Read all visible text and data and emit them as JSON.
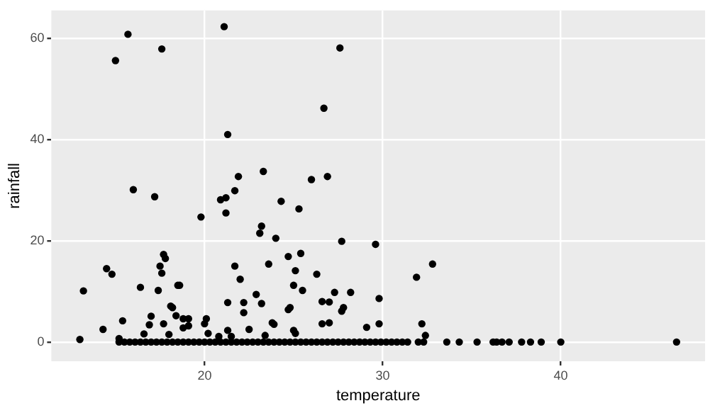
{
  "chart_data": {
    "type": "scatter",
    "xlabel": "temperature",
    "ylabel": "rainfall",
    "x": [
      15.7,
      15.0,
      17.6,
      21.1,
      27.6,
      26.7,
      21.3,
      21.9,
      23.3,
      26.0,
      26.9,
      16.0,
      17.2,
      19.8,
      20.9,
      21.2,
      21.2,
      21.7,
      24.3,
      25.3,
      23.2,
      23.1,
      24.0,
      27.7,
      29.6,
      13.2,
      14.5,
      14.8,
      17.7,
      17.8,
      17.5,
      17.6,
      16.4,
      17.4,
      18.5,
      18.6,
      18.1,
      18.2,
      18.4,
      18.8,
      19.1,
      18.8,
      19.1,
      17.0,
      16.9,
      15.4,
      14.3,
      13.0,
      15.2,
      16.6,
      17.7,
      18.0,
      20.1,
      20.0,
      20.2,
      21.7,
      22.0,
      21.3,
      22.2,
      22.2,
      22.9,
      23.2,
      23.6,
      24.7,
      25.1,
      25.4,
      25.0,
      25.5,
      26.3,
      26.6,
      27.0,
      27.3,
      28.2,
      27.8,
      27.7,
      24.7,
      24.8,
      23.8,
      23.9,
      26.6,
      27.0,
      29.1,
      29.8,
      29.8,
      22.5,
      21.3,
      25.0,
      25.1,
      23.4,
      20.8,
      21.5,
      32.8,
      31.9,
      32.2,
      32.4,
      15.2,
      15.5,
      15.8,
      16.1,
      16.4,
      16.7,
      17.0,
      17.3,
      17.6,
      17.9,
      18.2,
      18.5,
      18.8,
      19.1,
      19.4,
      19.7,
      20.0,
      20.3,
      20.6,
      20.9,
      21.2,
      21.5,
      21.8,
      22.1,
      22.4,
      22.7,
      23.0,
      23.3,
      23.6,
      23.9,
      24.2,
      24.5,
      24.8,
      25.1,
      25.4,
      25.7,
      26.0,
      26.3,
      26.6,
      26.9,
      27.2,
      27.5,
      27.8,
      28.1,
      28.4,
      28.7,
      29.0,
      29.3,
      29.6,
      29.9,
      30.2,
      30.5,
      30.8,
      31.1,
      31.4,
      32.0,
      32.3,
      33.6,
      34.3,
      35.3,
      36.2,
      36.4,
      36.7,
      37.1,
      37.8,
      38.3,
      38.9,
      40.0,
      46.5
    ],
    "values": [
      60.8,
      55.6,
      57.9,
      62.3,
      58.1,
      46.2,
      41.0,
      32.7,
      33.7,
      32.1,
      32.7,
      30.1,
      28.7,
      24.7,
      28.1,
      28.5,
      25.5,
      29.9,
      27.8,
      26.3,
      22.9,
      21.5,
      20.5,
      19.9,
      19.3,
      10.1,
      14.5,
      13.4,
      17.3,
      16.5,
      15.0,
      13.6,
      10.8,
      10.2,
      11.2,
      11.2,
      7.1,
      6.8,
      5.2,
      4.6,
      4.6,
      2.8,
      3.2,
      5.1,
      3.4,
      4.2,
      2.5,
      0.5,
      0.7,
      1.6,
      3.6,
      1.5,
      4.6,
      3.6,
      1.7,
      15.0,
      12.4,
      7.8,
      7.8,
      5.8,
      9.4,
      7.6,
      15.4,
      16.9,
      14.1,
      17.5,
      11.2,
      10.2,
      13.4,
      8.0,
      7.9,
      9.8,
      9.8,
      6.8,
      6.1,
      6.4,
      6.8,
      3.8,
      3.5,
      3.6,
      3.8,
      2.9,
      3.6,
      8.6,
      2.5,
      2.3,
      2.3,
      1.7,
      1.3,
      1.1,
      1.1,
      15.4,
      12.8,
      3.6,
      1.3,
      0,
      0,
      0,
      0,
      0,
      0,
      0,
      0,
      0,
      0,
      0,
      0,
      0,
      0,
      0,
      0,
      0,
      0,
      0,
      0,
      0,
      0,
      0,
      0,
      0,
      0,
      0,
      0,
      0,
      0,
      0,
      0,
      0,
      0,
      0,
      0,
      0,
      0,
      0,
      0,
      0,
      0,
      0,
      0,
      0,
      0,
      0,
      0,
      0,
      0,
      0,
      0,
      0,
      0,
      0,
      0,
      0,
      0,
      0,
      0,
      0,
      0,
      0,
      0,
      0,
      0,
      0,
      0,
      0
    ],
    "color": "#000000",
    "marker": "circle",
    "grid": true,
    "legend": false,
    "xlim": [
      11.4,
      48.1
    ],
    "xticks": [
      20,
      30,
      40
    ],
    "ylim": [
      -3.8,
      65.5
    ],
    "yticks": [
      0,
      20,
      40,
      60
    ]
  }
}
